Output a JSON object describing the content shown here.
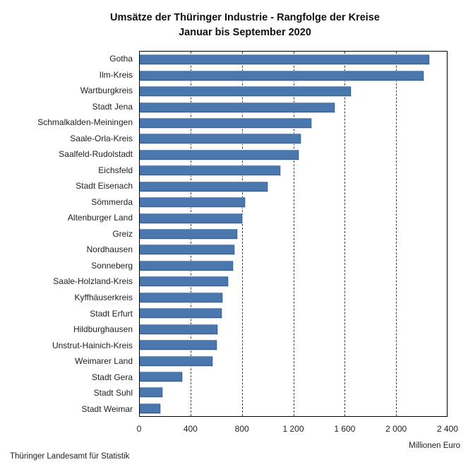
{
  "footer": {
    "source": "Thüringer Landesamt für Statistik"
  },
  "colors": {
    "bar_fill": "#4a77ae",
    "plot_border": "#000000",
    "gridline": "#3f3f3f",
    "text": "#1f1f1f",
    "background": "#ffffff"
  },
  "chart_data": {
    "type": "bar",
    "orientation": "horizontal",
    "title": "Umsätze der Thüringer Industrie - Rangfolge der Kreise",
    "subtitle": "Januar bis September 2020",
    "xlabel": "Millionen Euro",
    "ylabel": "",
    "xlim": [
      0,
      2400
    ],
    "grid": "vertical-dashed",
    "legend": "none",
    "categories": [
      "Gotha",
      "Ilm-Kreis",
      "Wartburgkreis",
      "Stadt Jena",
      "Schmalkalden-Meiningen",
      "Saale-Orla-Kreis",
      "Saalfeld-Rudolstadt",
      "Eichsfeld",
      "Stadt Eisenach",
      "Sömmerda",
      "Altenburger Land",
      "Greiz",
      "Nordhausen",
      "Sonneberg",
      "Saale-Holzland-Kreis",
      "Kyffhäuserkreis",
      "Stadt Erfurt",
      "Hildburghausen",
      "Unstrut-Hainich-Kreis",
      "Weimarer Land",
      "Stadt Gera",
      "Stadt Suhl",
      "Stadt Weimar"
    ],
    "values": [
      2260,
      2220,
      1650,
      1520,
      1340,
      1260,
      1240,
      1100,
      1000,
      820,
      800,
      760,
      740,
      730,
      690,
      645,
      640,
      605,
      600,
      570,
      330,
      175,
      160
    ],
    "xticks": [
      {
        "value": 0,
        "label": "0"
      },
      {
        "value": 400,
        "label": "400"
      },
      {
        "value": 800,
        "label": "800"
      },
      {
        "value": 1200,
        "label": "1 200"
      },
      {
        "value": 1600,
        "label": "1 600"
      },
      {
        "value": 2000,
        "label": "2 000"
      },
      {
        "value": 2400,
        "label": "2 400"
      }
    ]
  }
}
